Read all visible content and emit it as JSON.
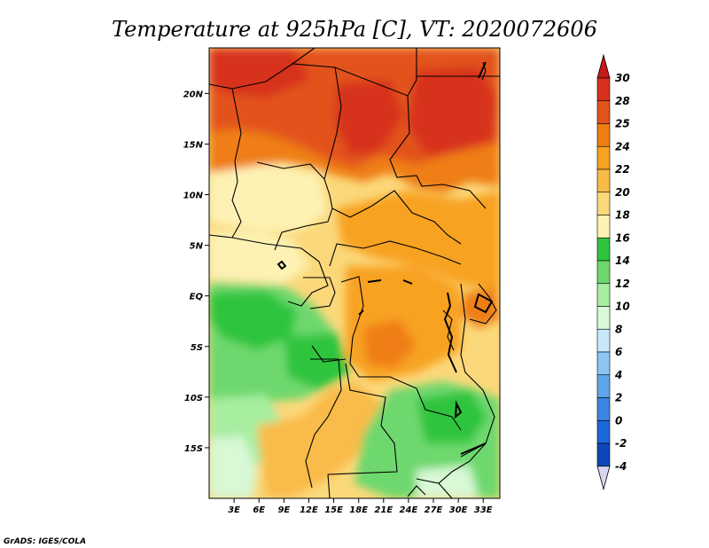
{
  "chart_data": {
    "type": "heatmap",
    "title": "Temperature at 925hPa [C], VT: 2020072606",
    "credit": "GrADS: IGES/COLA",
    "xlabel": "",
    "ylabel": "",
    "xlim": [
      0,
      35
    ],
    "ylim": [
      -20,
      24.5
    ],
    "x_ticks": [
      {
        "value": 3,
        "label": "3E"
      },
      {
        "value": 6,
        "label": "6E"
      },
      {
        "value": 9,
        "label": "9E"
      },
      {
        "value": 12,
        "label": "12E"
      },
      {
        "value": 15,
        "label": "15E"
      },
      {
        "value": 18,
        "label": "18E"
      },
      {
        "value": 21,
        "label": "21E"
      },
      {
        "value": 24,
        "label": "24E"
      },
      {
        "value": 27,
        "label": "27E"
      },
      {
        "value": 30,
        "label": "30E"
      },
      {
        "value": 33,
        "label": "33E"
      }
    ],
    "y_ticks": [
      {
        "value": 20,
        "label": "20N"
      },
      {
        "value": 15,
        "label": "15N"
      },
      {
        "value": 10,
        "label": "10N"
      },
      {
        "value": 5,
        "label": "5N"
      },
      {
        "value": 0,
        "label": "EQ"
      },
      {
        "value": -5,
        "label": "5S"
      },
      {
        "value": -10,
        "label": "10S"
      },
      {
        "value": -15,
        "label": "15S"
      }
    ],
    "colorbar": {
      "labels": [
        "30",
        "28",
        "25",
        "24",
        "22",
        "20",
        "18",
        "16",
        "14",
        "12",
        "10",
        "8",
        "6",
        "4",
        "2",
        "0",
        "-2",
        "-4"
      ],
      "colors": [
        "#d7301f",
        "#e2531a",
        "#ef7e12",
        "#f8a223",
        "#f9bb48",
        "#fbd87a",
        "#fdf2b4",
        "#2fc43c",
        "#6ed86e",
        "#a7eea0",
        "#d8f8d6",
        "#c8e8fa",
        "#8cc6f2",
        "#5ea6ea",
        "#3a86e2",
        "#1c68d6",
        "#0d46b8",
        "#07208e"
      ],
      "top_cap_color": "#c41b1b",
      "bottom_cap_color": "#d6d6f0"
    },
    "grid": false,
    "notes_visible": [
      "regional map of Central/West Africa with country borders",
      "shaded 925hPa temperature field"
    ]
  }
}
